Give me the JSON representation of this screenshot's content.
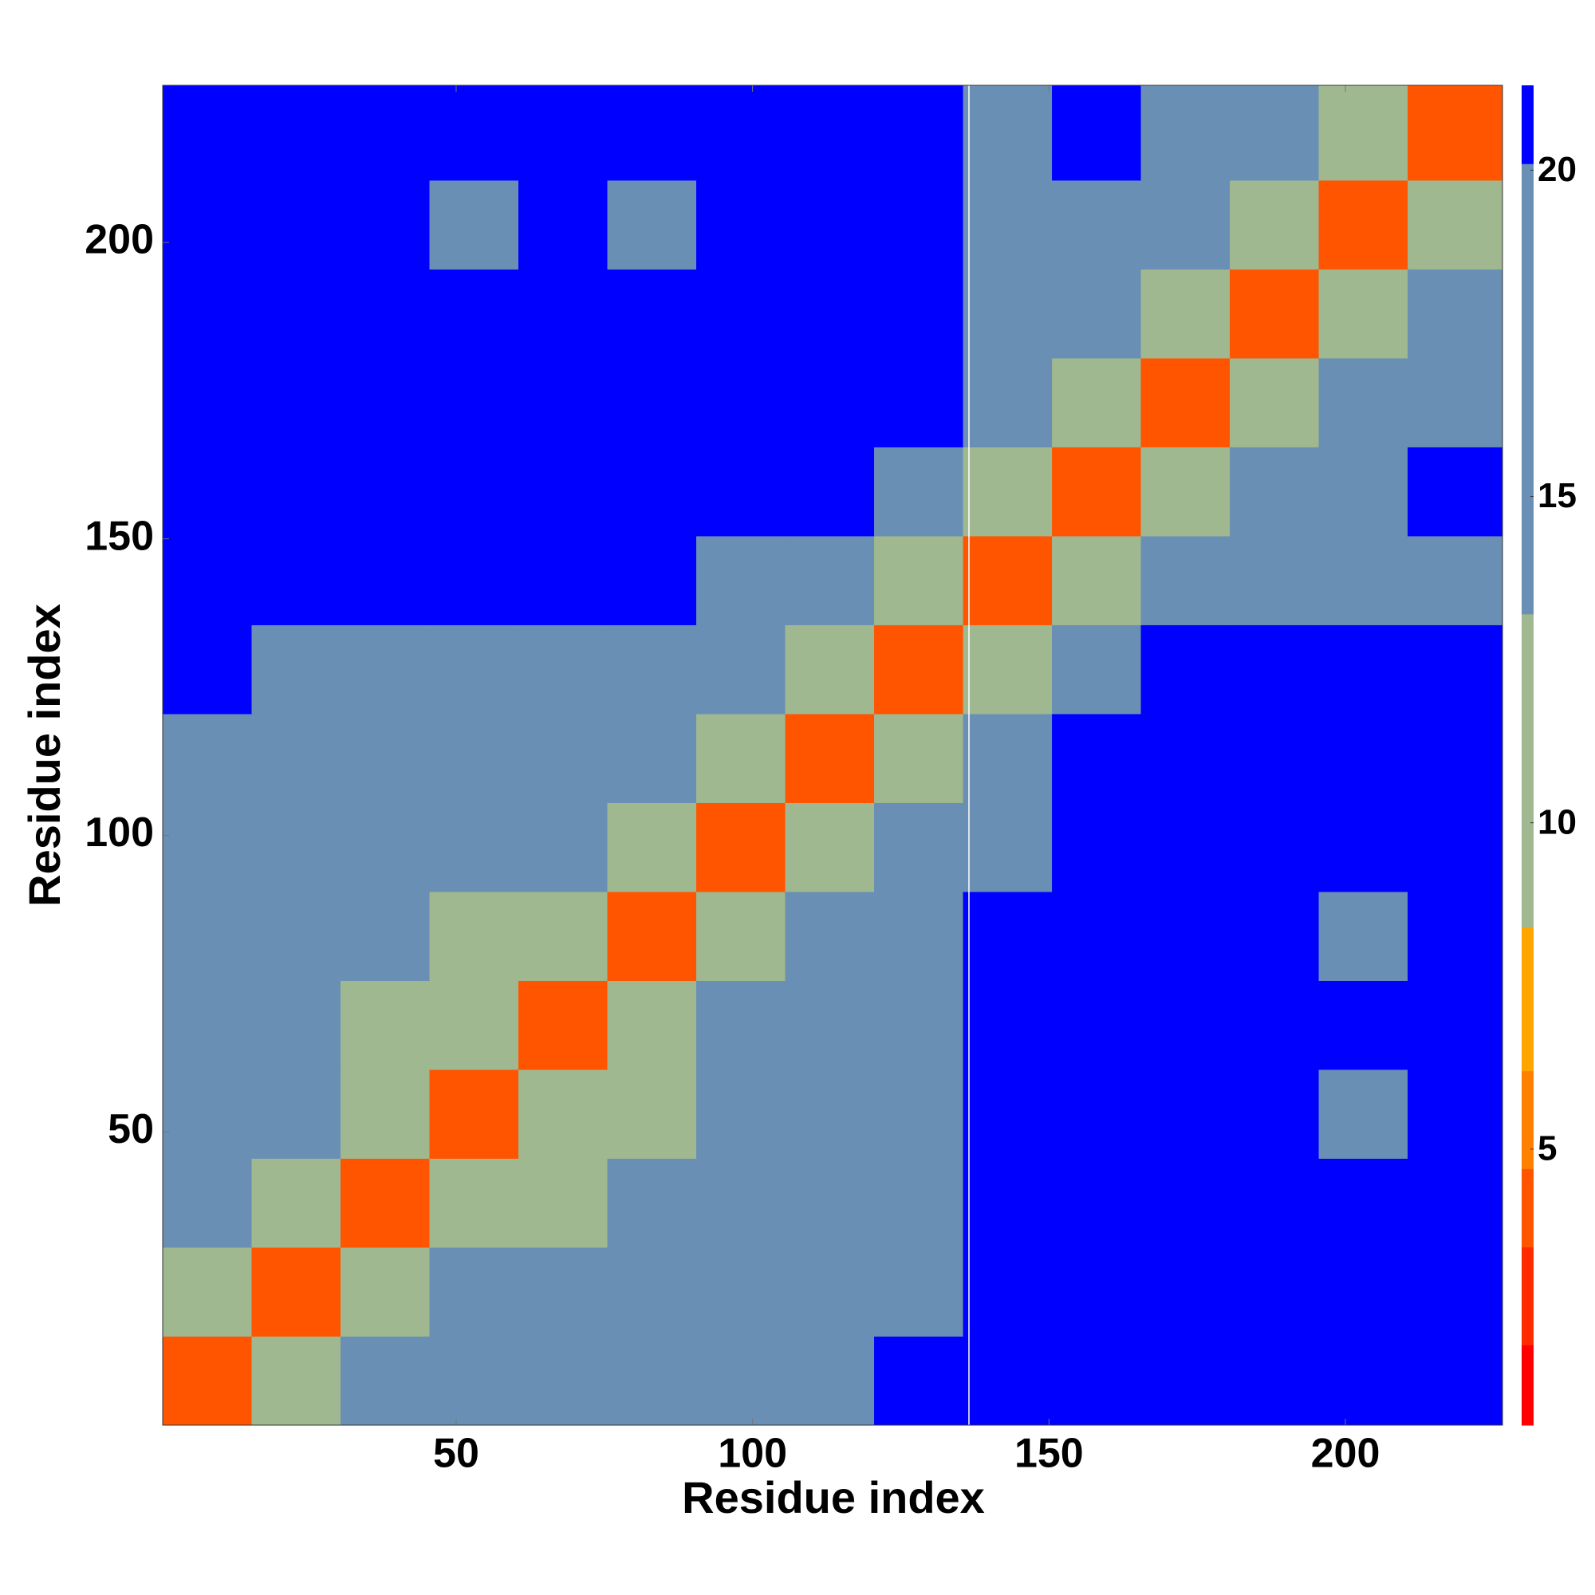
{
  "chart_data": {
    "type": "heatmap",
    "xlabel": "Residue index",
    "ylabel": "Residue index",
    "bins": [
      0.5,
      15.5,
      30.5,
      45.5,
      60.5,
      75.5,
      90.5,
      105.5,
      120.5,
      135.5,
      150.5,
      165.5,
      180.5,
      195.5,
      210.5,
      226.5
    ],
    "values": [
      [
        4,
        12,
        15,
        16,
        15,
        16,
        19,
        15,
        21,
        24,
        24,
        24,
        24,
        24,
        24
      ],
      [
        12,
        4,
        12,
        14,
        15,
        15,
        17,
        15,
        19,
        24,
        24,
        24,
        24,
        24,
        24
      ],
      [
        15,
        12,
        4,
        11,
        13,
        14,
        16,
        16,
        17,
        24,
        24,
        24,
        24,
        24,
        24
      ],
      [
        16,
        14,
        11,
        4,
        11,
        13,
        15,
        15,
        16,
        22,
        24,
        24,
        24,
        17,
        24
      ],
      [
        15,
        15,
        13,
        11,
        4,
        12,
        14,
        16,
        16,
        22,
        24,
        24,
        24,
        24,
        24
      ],
      [
        16,
        15,
        14,
        13,
        12,
        4,
        12,
        15,
        15,
        22,
        24,
        24,
        24,
        16,
        24
      ],
      [
        19,
        17,
        16,
        15,
        14,
        12,
        4,
        11,
        14,
        20,
        24,
        24,
        24,
        24,
        24
      ],
      [
        15,
        15,
        16,
        15,
        16,
        15,
        11,
        4,
        11,
        18,
        24,
        24,
        24,
        24,
        24
      ],
      [
        21,
        19,
        17,
        16,
        16,
        15,
        14,
        11,
        4,
        11,
        20,
        22,
        24,
        24,
        24
      ],
      [
        24,
        24,
        24,
        22,
        22,
        22,
        20,
        18,
        11,
        4,
        12,
        18,
        19,
        17,
        20
      ],
      [
        24,
        24,
        24,
        24,
        24,
        24,
        24,
        24,
        20,
        12,
        4,
        12,
        16,
        20,
        22
      ],
      [
        24,
        24,
        24,
        24,
        24,
        24,
        24,
        24,
        22,
        18,
        12,
        4,
        11,
        16,
        19
      ],
      [
        24,
        24,
        24,
        24,
        24,
        24,
        24,
        24,
        24,
        19,
        16,
        11,
        4,
        10,
        14
      ],
      [
        24,
        24,
        24,
        17,
        24,
        16,
        24,
        24,
        24,
        17,
        20,
        16,
        10,
        4,
        11
      ],
      [
        24,
        24,
        24,
        24,
        24,
        24,
        24,
        24,
        24,
        20,
        22,
        19,
        14,
        11,
        4
      ]
    ],
    "xlim": [
      0.5,
      226.5
    ],
    "ylim": [
      0.5,
      226.5
    ],
    "xticks": [
      50,
      100,
      150,
      200
    ],
    "yticks": [
      50,
      100,
      150,
      200
    ],
    "divider_x": 136.5,
    "colorbar": {
      "lim": [
        0.77,
        21.3
      ],
      "ticks": [
        5,
        10,
        15,
        20
      ],
      "levels": [
        0.77,
        2,
        3.5,
        4.7,
        6.2,
        8.4,
        13.2,
        20.1,
        21.3
      ],
      "colors": [
        "#ff0000",
        "#ff2a00",
        "#ff5500",
        "#ff8000",
        "#ffa500",
        "#9fb88f",
        "#6a8fb5",
        "#0000ff"
      ]
    }
  }
}
